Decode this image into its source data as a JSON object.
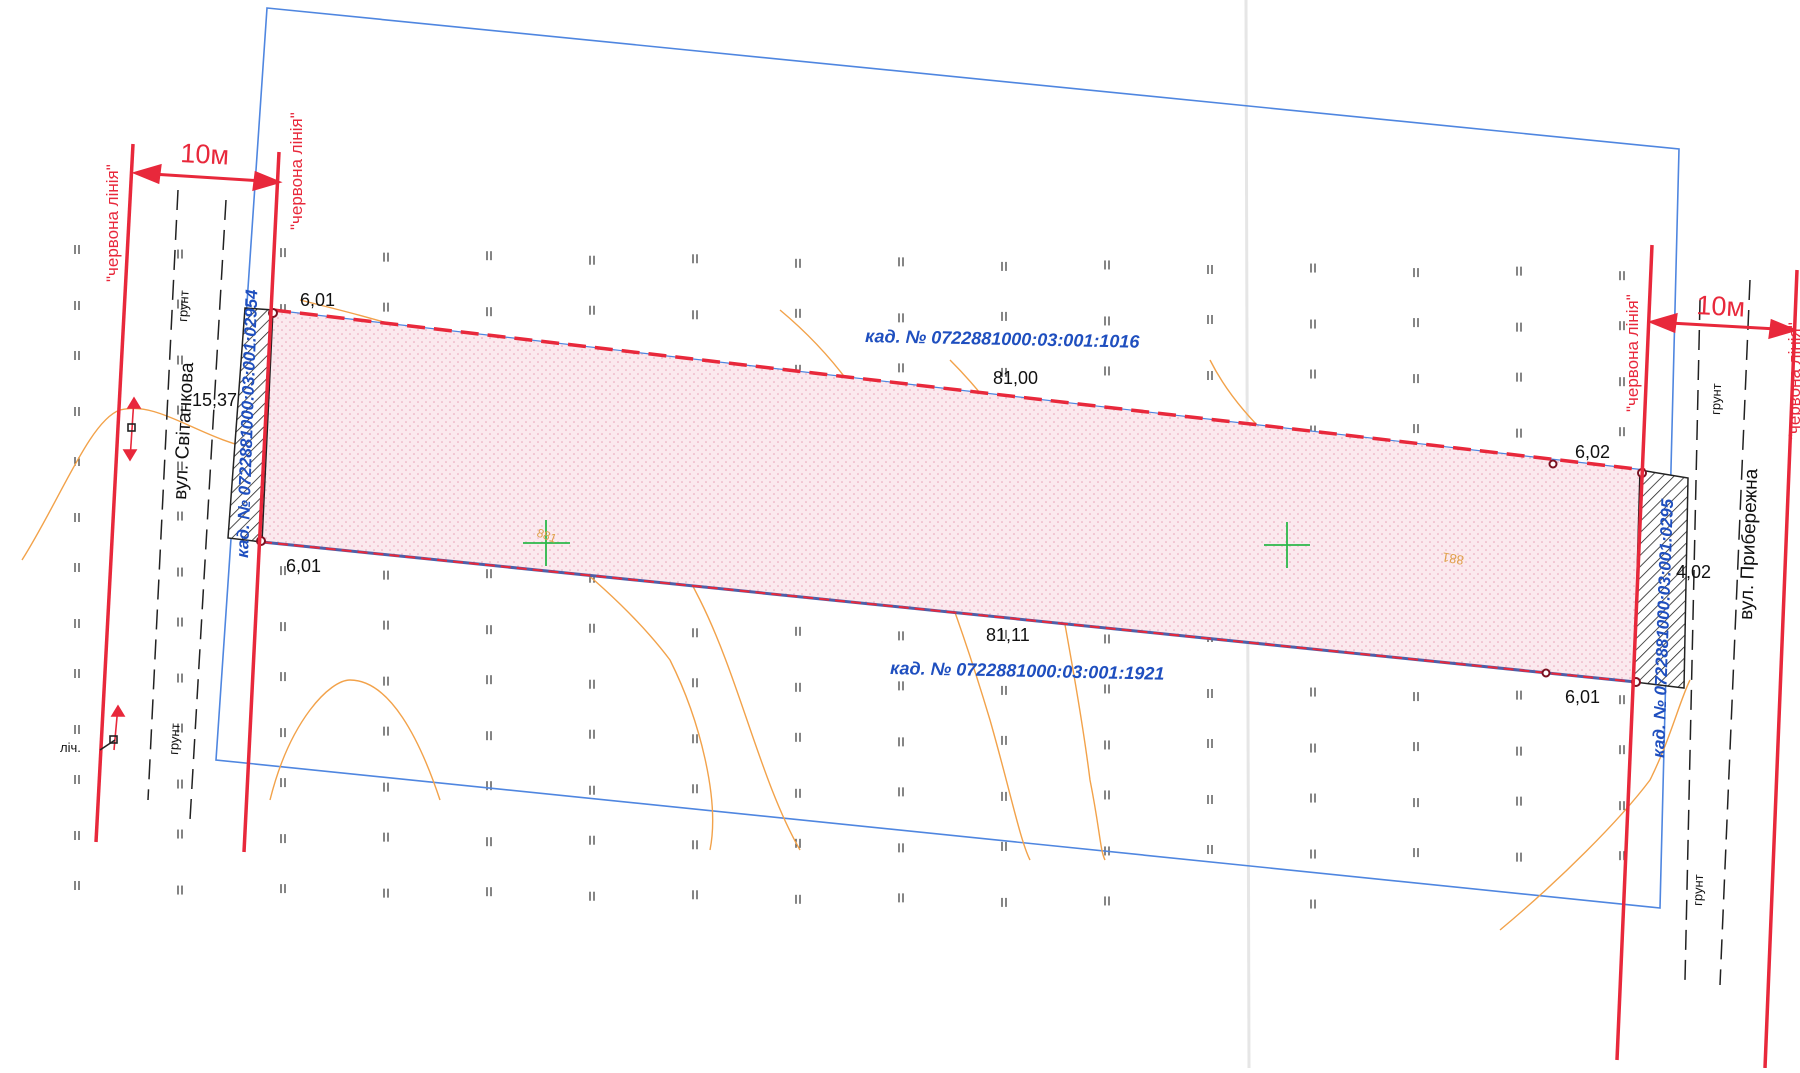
{
  "labels": {
    "red_line": "\"червона лінія\"",
    "width_10m": "10м",
    "street_west": "вул. Світанкова",
    "street_east": "вул. Прибережна",
    "ground": "грунт",
    "meter": "ліч.",
    "cad_north": "кад. № 0722881000:03:001:1016",
    "cad_south": "кад. № 0722881000:03:001:1921",
    "cad_west": "кад. № 0722881000:03:001:02954",
    "cad_east": "кад. № 0722881000:03:001:0295",
    "contour_a": "881",
    "contour_b": "881"
  },
  "dimensions": {
    "nw_side": "6,01",
    "sw_side": "6,01",
    "ne_side": "6,02",
    "se_side": "6,01",
    "north": "81,00",
    "south": "81,11",
    "west": "15,37",
    "east": "4,02"
  },
  "colors": {
    "red_line": "#e8283b",
    "cadastre_blue": "#1f4fbf",
    "boundary_blue": "#4f86e0",
    "contour": "#f2a24a",
    "plot_fill": "#f7dfe6",
    "cross": "#2bb84a"
  }
}
